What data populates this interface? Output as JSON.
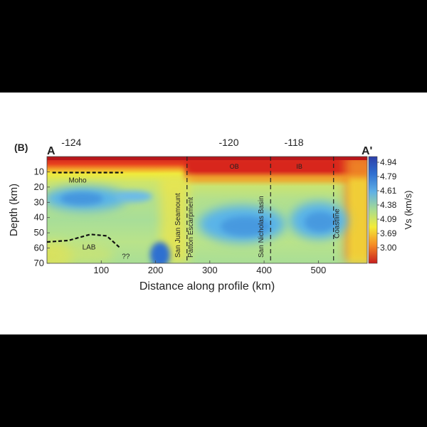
{
  "chart_data": {
    "type": "heatmap",
    "panel_label": "(B)",
    "profile_start": "A",
    "profile_end": "A'",
    "xlabel": "Distance along profile (km)",
    "ylabel": "Depth (km)",
    "xlim": [
      0,
      590
    ],
    "ylim": [
      0,
      70
    ],
    "x_ticks": [
      100,
      200,
      300,
      400,
      500
    ],
    "y_ticks": [
      10,
      20,
      30,
      40,
      50,
      60,
      70
    ],
    "top_axis": {
      "tick_labels": [
        "-124",
        "-120",
        "-118"
      ],
      "positions_km": [
        45,
        335,
        455
      ]
    },
    "colorbar": {
      "label": "Vs (km/s)",
      "tick_labels": [
        "4.94",
        "4.79",
        "4.61",
        "4.38",
        "4.09",
        "3.69",
        "3.00"
      ],
      "colors": [
        "#2d3fa8",
        "#2f6fd0",
        "#5fb0e6",
        "#a8dc90",
        "#f4ec38",
        "#f58a24",
        "#c81e1e"
      ]
    },
    "boundaries": [
      {
        "label": "San Juan Seamount",
        "x_km": 258
      },
      {
        "label": "Patton Escarpment",
        "x_km": 258
      },
      {
        "label": "San Nicholas Basin",
        "x_km": 412
      },
      {
        "label": "Coastline",
        "x_km": 528
      }
    ],
    "region_labels": [
      {
        "label": "OB",
        "x_km": 345,
        "depth_km": 6
      },
      {
        "label": "IB",
        "x_km": 465,
        "depth_km": 6
      }
    ],
    "moho": {
      "label": "Moho",
      "x_km": [
        10,
        140
      ],
      "depth_km": [
        10.5,
        10.5
      ]
    },
    "lab": {
      "label": "LAB",
      "uncertain_label": "??",
      "x_km": [
        0,
        40,
        80,
        110,
        135
      ],
      "depth_km": [
        56,
        55,
        51,
        52,
        60
      ]
    },
    "velocity_features": [
      {
        "x_km": 0,
        "y_km": 0,
        "rx": 600,
        "ry": 2,
        "vs": 3.0
      },
      {
        "x_km": 40,
        "y_km": 24,
        "rx": 70,
        "ry": 12,
        "vs": 4.7
      },
      {
        "x_km": 150,
        "y_km": 22,
        "rx": 30,
        "ry": 6,
        "vs": 4.6
      },
      {
        "x_km": 215,
        "y_km": 66,
        "rx": 22,
        "ry": 12,
        "vs": 4.9
      },
      {
        "x_km": 360,
        "y_km": 44,
        "rx": 55,
        "ry": 14,
        "vs": 4.75
      },
      {
        "x_km": 470,
        "y_km": 40,
        "rx": 45,
        "ry": 16,
        "vs": 4.7
      }
    ]
  }
}
